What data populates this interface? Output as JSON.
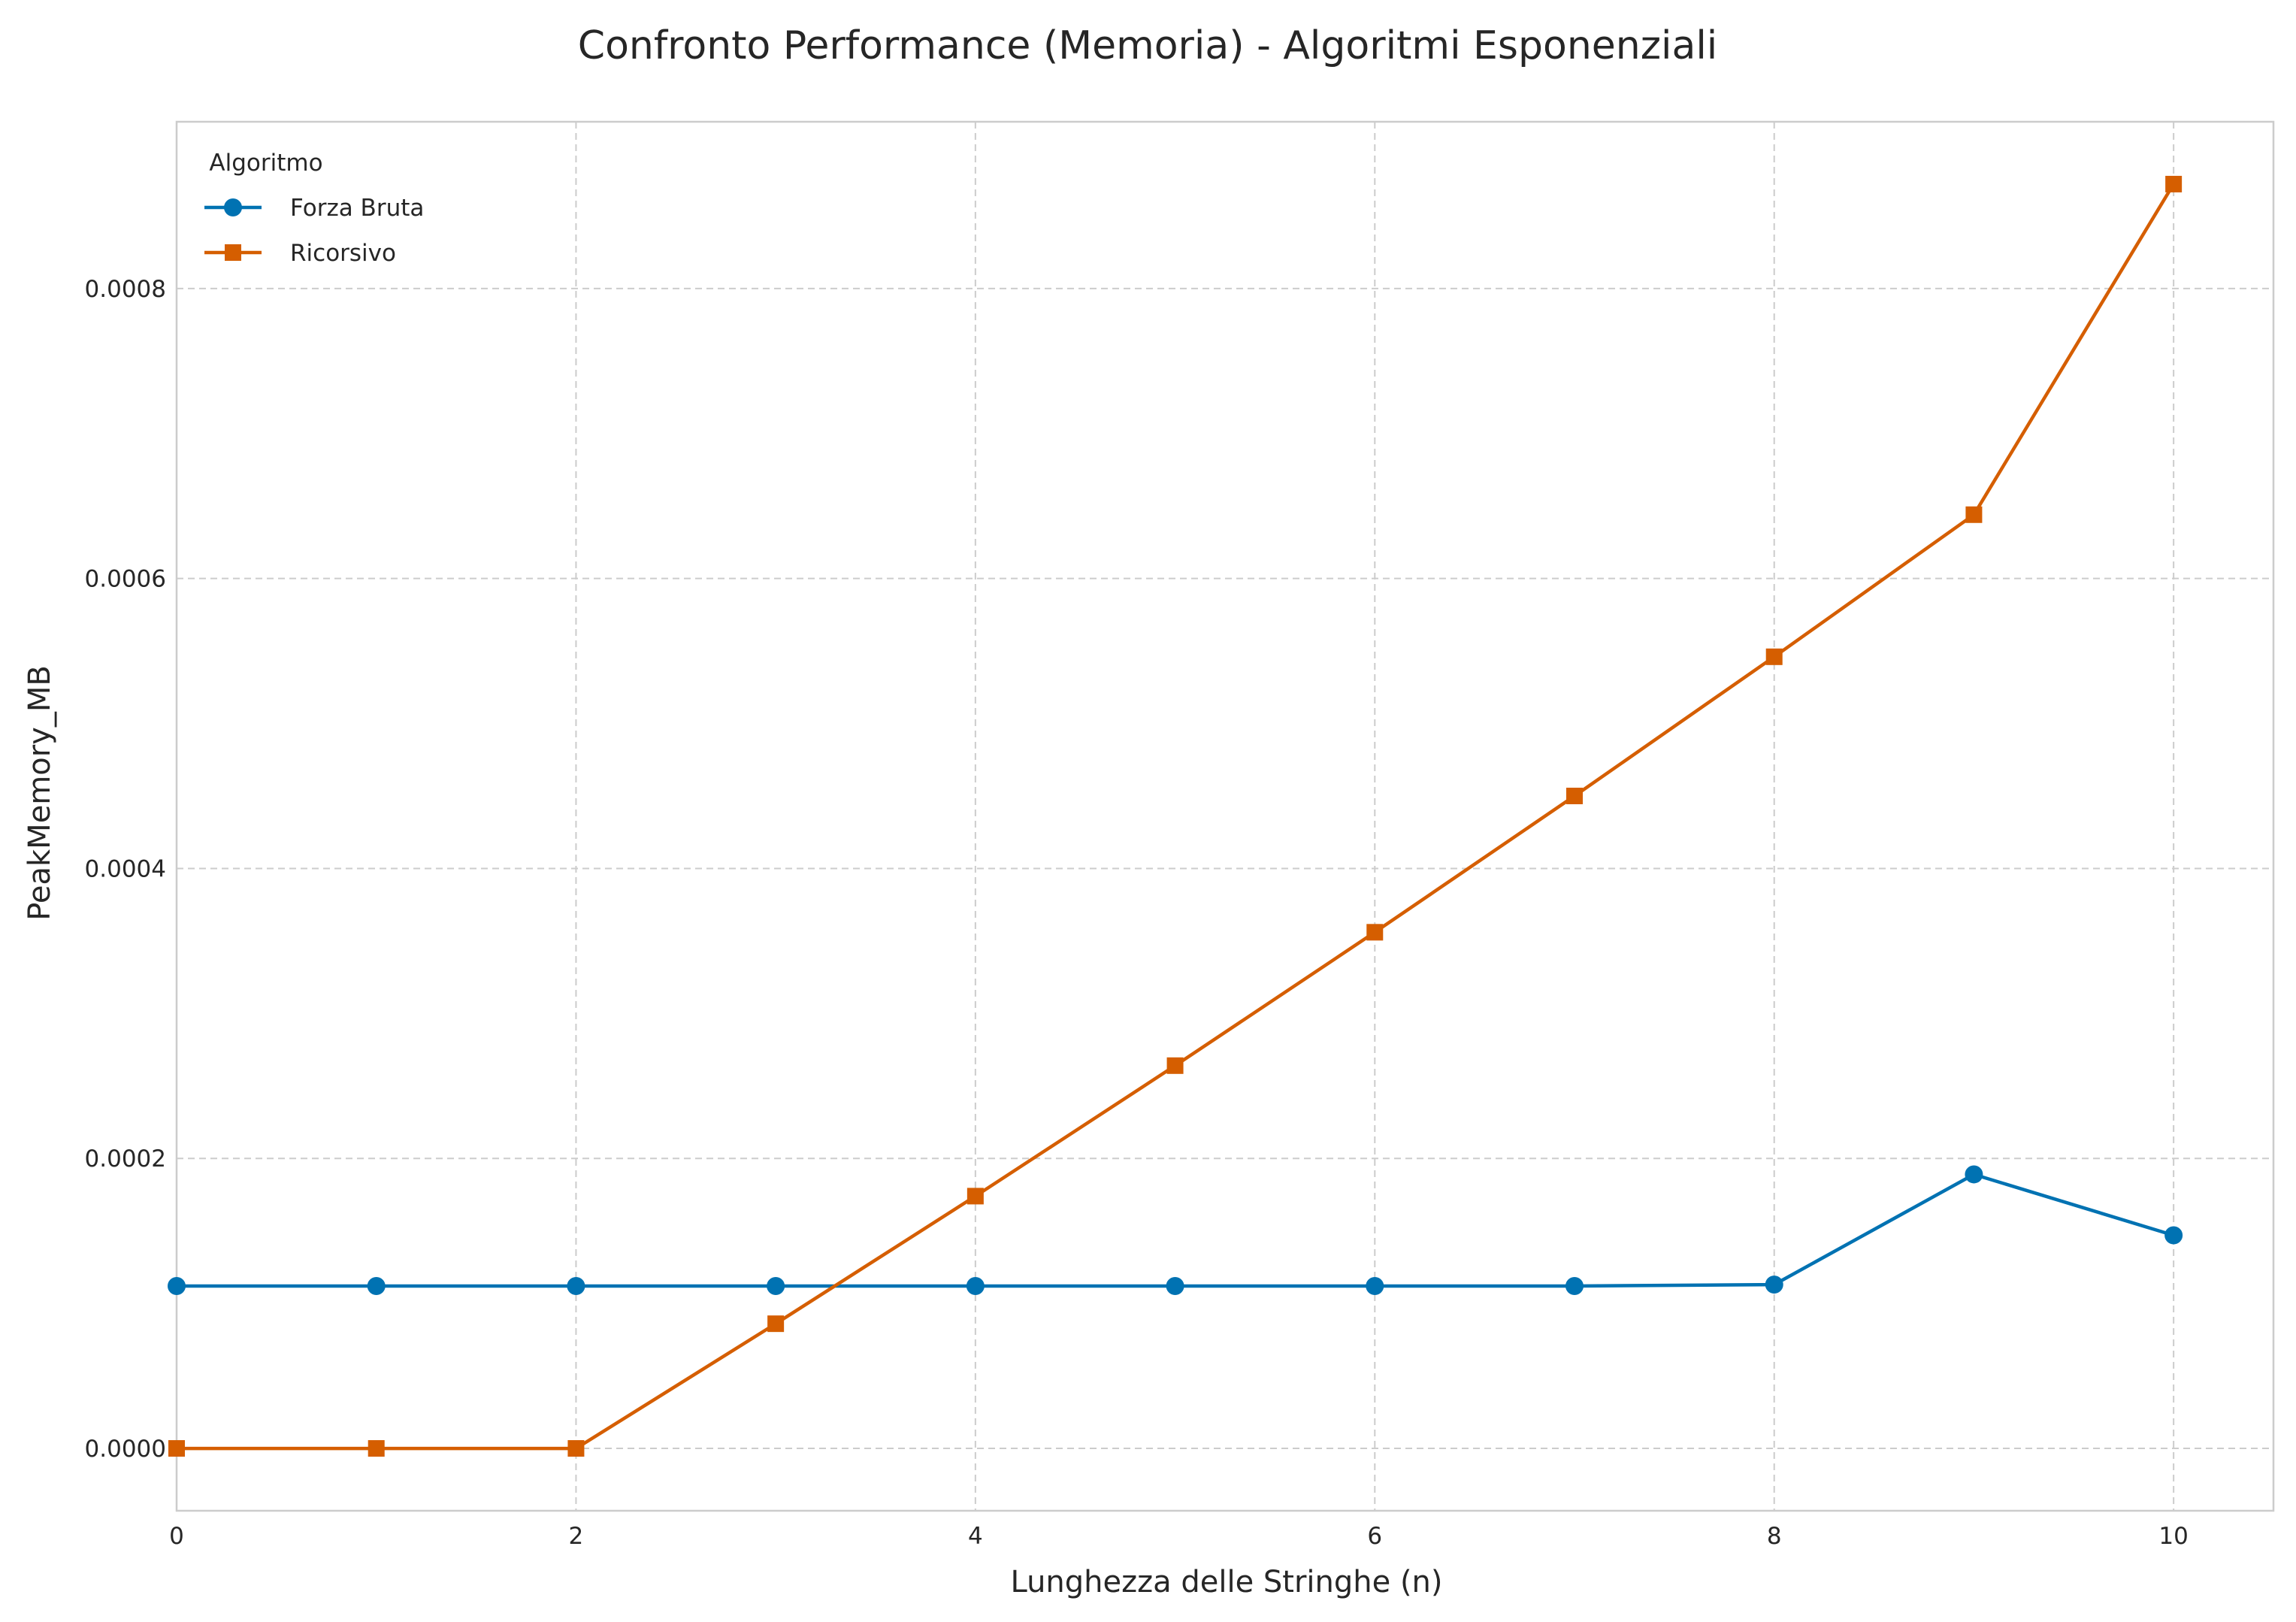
{
  "chart_data": {
    "type": "line",
    "title": "Confronto Performance (Memoria) - Algoritmi Esponenziali",
    "xlabel": "Lunghezza delle Stringhe (n)",
    "ylabel": "PeakMemory_MB",
    "xlim": [
      0,
      10.5
    ],
    "ylim": [
      -4.3e-05,
      0.000915
    ],
    "x_ticks": [
      0,
      2,
      4,
      6,
      8,
      10
    ],
    "y_ticks": [
      0.0,
      0.0002,
      0.0004,
      0.0006,
      0.0008
    ],
    "x_tick_labels": [
      "0",
      "2",
      "4",
      "6",
      "8",
      "10"
    ],
    "y_tick_labels": [
      "0.0000",
      "0.0002",
      "0.0004",
      "0.0006",
      "0.0008"
    ],
    "grid": true,
    "legend": {
      "title": "Algoritmo",
      "position": "top-left"
    },
    "x": [
      0,
      1,
      2,
      3,
      4,
      5,
      6,
      7,
      8,
      9,
      10
    ],
    "series": [
      {
        "name": "Forza Bruta",
        "color": "#0072b2",
        "marker": "circle",
        "values": [
          0.000112,
          0.000112,
          0.000112,
          0.000112,
          0.000112,
          0.000112,
          0.000112,
          0.000112,
          0.000113,
          0.000189,
          0.000147
        ]
      },
      {
        "name": "Ricorsivo",
        "color": "#d55e00",
        "marker": "square",
        "values": [
          0.0,
          0.0,
          0.0,
          8.6e-05,
          0.000174,
          0.000264,
          0.000356,
          0.00045,
          0.000546,
          0.000644,
          0.000872
        ]
      }
    ]
  }
}
